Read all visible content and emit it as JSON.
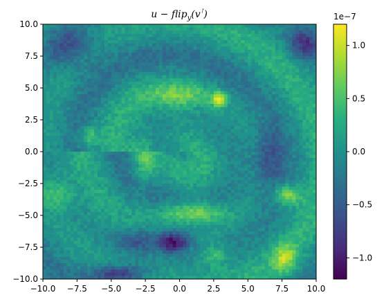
{
  "chart_data": {
    "type": "heatmap",
    "title": "u − flip_y(v^T)",
    "title_parts": {
      "main": "u − flip",
      "sub": "y",
      "arg": "(v",
      "sup": "⊺",
      "close": ")"
    },
    "xlabel": "",
    "ylabel": "",
    "xlim": [
      -10,
      10
    ],
    "ylim": [
      -10,
      10
    ],
    "x_ticks": [
      -10.0,
      -7.5,
      -5.0,
      -2.5,
      0.0,
      2.5,
      5.0,
      7.5,
      10.0
    ],
    "x_tick_labels": [
      "−10.0",
      "−7.5",
      "−5.0",
      "−2.5",
      "0.0",
      "2.5",
      "5.0",
      "7.5",
      "10.0"
    ],
    "y_ticks": [
      10.0,
      7.5,
      5.0,
      2.5,
      0.0,
      -2.5,
      -5.0,
      -7.5,
      -10.0
    ],
    "y_tick_labels": [
      "10.0",
      "7.5",
      "5.0",
      "2.5",
      "0.0",
      "−2.5",
      "−5.0",
      "−7.5",
      "−10.0"
    ],
    "grid": false,
    "colormap": "viridis",
    "colorbar": {
      "min": -1.2e-07,
      "max": 1.2e-07,
      "ticks": [
        1.0,
        0.5,
        0.0,
        -0.5,
        -1.0
      ],
      "tick_labels": [
        "1.0",
        "0.5",
        "0.0",
        "−0.5",
        "−1.0"
      ],
      "offset_text": "1e−7"
    },
    "grid_size": [
      80,
      80
    ],
    "features": [
      {
        "x": 0.0,
        "y": 4.4,
        "value": 0.55,
        "sx": 1.6,
        "sy": 0.7
      },
      {
        "x": 2.9,
        "y": 4.1,
        "value": 1.0,
        "sx": 0.4,
        "sy": 0.4
      },
      {
        "x": -2.6,
        "y": -0.8,
        "value": 0.6,
        "sx": 0.6,
        "sy": 1.4
      },
      {
        "x": 0.8,
        "y": -4.8,
        "value": 0.9,
        "sx": 1.8,
        "sy": 0.6
      },
      {
        "x": 7.9,
        "y": -3.4,
        "value": 0.9,
        "sx": 0.7,
        "sy": 0.6
      },
      {
        "x": 7.7,
        "y": -8.4,
        "value": 0.7,
        "sx": 0.6,
        "sy": 0.8
      },
      {
        "x": -9.0,
        "y": -3.4,
        "value": 0.5,
        "sx": 0.8,
        "sy": 0.8
      },
      {
        "x": -6.6,
        "y": 1.2,
        "value": 0.55,
        "sx": 0.5,
        "sy": 0.6
      },
      {
        "x": 2.6,
        "y": -8.2,
        "value": 0.5,
        "sx": 0.6,
        "sy": 0.6
      },
      {
        "x": -0.4,
        "y": -7.1,
        "value": -1.1,
        "sx": 0.8,
        "sy": 0.6
      },
      {
        "x": -4.5,
        "y": -9.6,
        "value": -0.9,
        "sx": 1.4,
        "sy": 0.5
      },
      {
        "x": -8.2,
        "y": 8.4,
        "value": -0.6,
        "sx": 1.4,
        "sy": 1.2
      },
      {
        "x": 6.5,
        "y": -0.6,
        "value": -0.5,
        "sx": 0.8,
        "sy": 1.6
      },
      {
        "x": 9.2,
        "y": 8.5,
        "value": -0.7,
        "sx": 0.8,
        "sy": 0.8
      },
      {
        "x": -3.0,
        "y": -7.0,
        "value": -0.6,
        "sx": 1.2,
        "sy": 0.7
      }
    ]
  }
}
